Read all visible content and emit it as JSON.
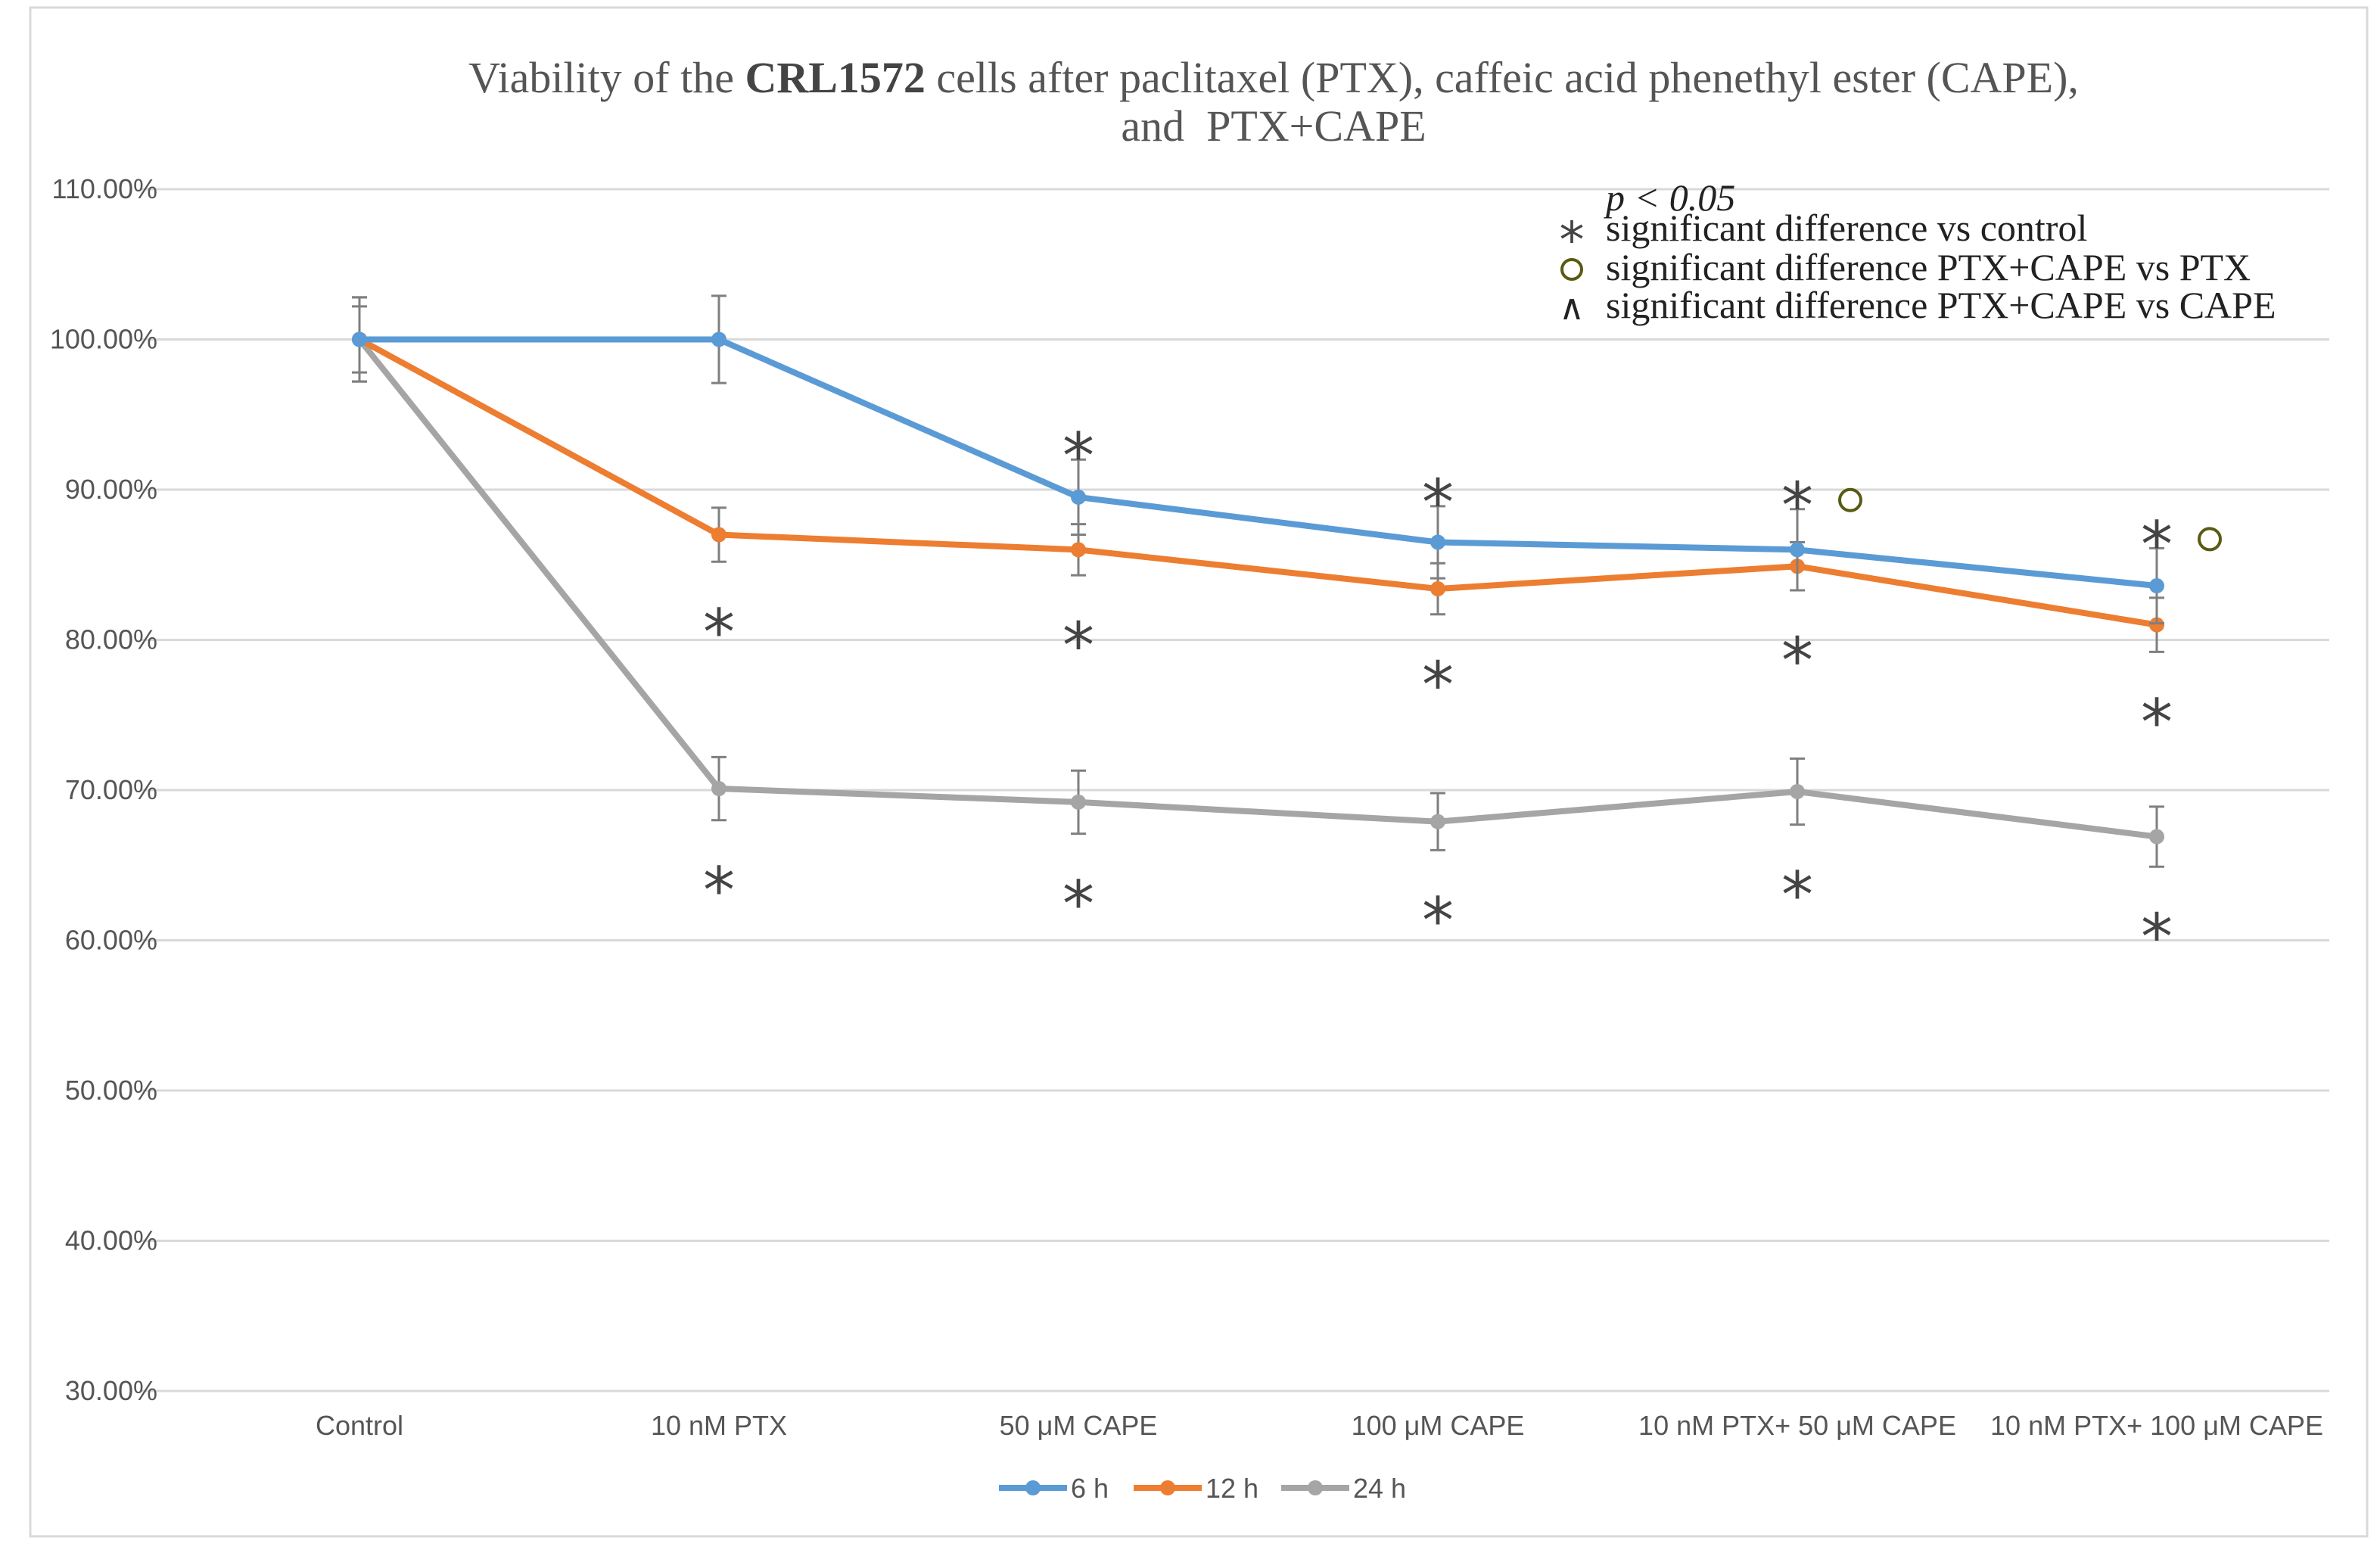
{
  "chart_data": {
    "type": "line",
    "title": {
      "prefix": "Viability of the ",
      "bold": "CRL1572",
      "suffix": " cells after paclitaxel (PTX), caffeic acid phenethyl ester (CAPE),",
      "line2": "and  PTX+CAPE"
    },
    "categories": [
      "Control",
      "10 nM PTX",
      "50 μM  CAPE",
      "100 μM CAPE",
      "10 nM  PTX+ 50 μM  CAPE",
      "10 nM  PTX+ 100 μM CAPE"
    ],
    "ylim": [
      0.3,
      1.1
    ],
    "yticks": [
      0.3,
      0.4,
      0.5,
      0.6,
      0.7,
      0.8,
      0.9,
      1.0,
      1.1
    ],
    "ytick_labels": [
      "30.00%",
      "40.00%",
      "50.00%",
      "60.00%",
      "70.00%",
      "80.00%",
      "90.00%",
      "100.00%",
      "110.00%"
    ],
    "grid": true,
    "legend_position": "bottom",
    "series": [
      {
        "name": "6 h",
        "color": "#5B9BD5",
        "values": [
          1.0,
          1.0,
          0.895,
          0.865,
          0.86,
          0.836
        ],
        "errors": [
          0.028,
          0.029,
          0.025,
          0.024,
          0.027,
          0.025
        ]
      },
      {
        "name": "12 h",
        "color": "#ED7D31",
        "values": [
          1.0,
          0.87,
          0.86,
          0.834,
          0.849,
          0.81
        ],
        "errors": [
          0.022,
          0.018,
          0.017,
          0.017,
          0.016,
          0.018
        ]
      },
      {
        "name": "24 h",
        "color": "#A5A5A5",
        "values": [
          1.0,
          0.701,
          0.692,
          0.679,
          0.699,
          0.669
        ],
        "errors": [
          0.028,
          0.021,
          0.021,
          0.019,
          0.022,
          0.02
        ]
      }
    ],
    "annotations": {
      "significance_level": "p < 0.05",
      "legend_entries": [
        {
          "symbol": "*",
          "symbol_name": "asterisk",
          "text": "significant difference vs control"
        },
        {
          "symbol": "○",
          "symbol_name": "circle",
          "text": "significant difference PTX+CAPE vs PTX"
        },
        {
          "symbol": "∧",
          "symbol_name": "caret",
          "text": "significant difference PTX+CAPE vs CAPE"
        }
      ],
      "marks": [
        {
          "category": 1,
          "series": "12 h",
          "symbol": "*",
          "side": "below"
        },
        {
          "category": 1,
          "series": "24 h",
          "symbol": "*",
          "side": "below"
        },
        {
          "category": 2,
          "series": "6 h",
          "symbol": "*",
          "side": "above"
        },
        {
          "category": 2,
          "series": "12 h",
          "symbol": "*",
          "side": "below"
        },
        {
          "category": 2,
          "series": "24 h",
          "symbol": "*",
          "side": "below"
        },
        {
          "category": 3,
          "series": "6 h",
          "symbol": "*",
          "side": "above"
        },
        {
          "category": 3,
          "series": "12 h",
          "symbol": "*",
          "side": "below"
        },
        {
          "category": 3,
          "series": "24 h",
          "symbol": "*",
          "side": "below"
        },
        {
          "category": 4,
          "series": "6 h",
          "symbol": "*",
          "side": "above"
        },
        {
          "category": 4,
          "series": "6 h",
          "symbol": "○",
          "side": "above-right"
        },
        {
          "category": 4,
          "series": "12 h",
          "symbol": "*",
          "side": "below"
        },
        {
          "category": 4,
          "series": "24 h",
          "symbol": "*",
          "side": "below"
        },
        {
          "category": 5,
          "series": "6 h",
          "symbol": "*",
          "side": "above"
        },
        {
          "category": 5,
          "series": "6 h",
          "symbol": "○",
          "side": "above-right"
        },
        {
          "category": 5,
          "series": "12 h",
          "symbol": "*",
          "side": "below"
        },
        {
          "category": 5,
          "series": "24 h",
          "symbol": "*",
          "side": "below"
        }
      ]
    }
  }
}
